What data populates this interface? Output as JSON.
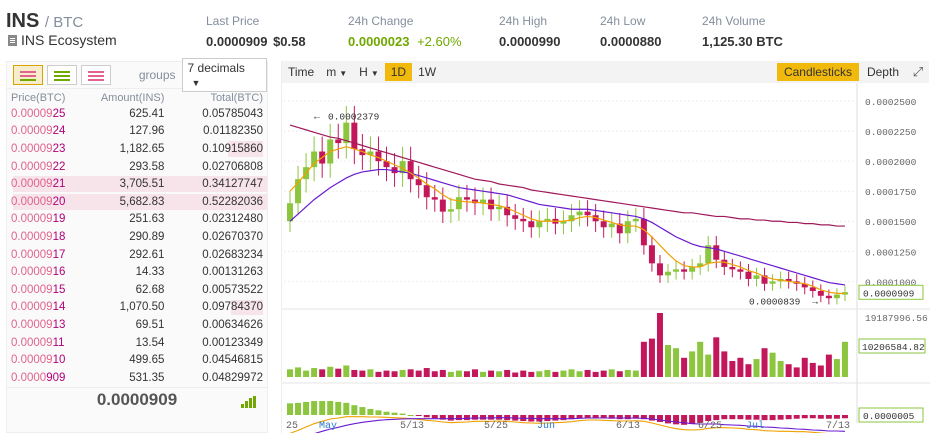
{
  "header": {
    "symbol": "INS",
    "quote": "/ BTC",
    "name": "INS Ecosystem",
    "stats": {
      "last_price_label": "Last Price",
      "last_price": "0.0000909",
      "last_price_usd": "$0.58",
      "change_label": "24h Change",
      "change_value": "0.0000023",
      "change_pct": "+2.60%",
      "high_label": "24h High",
      "high_value": "0.0000990",
      "low_label": "24h Low",
      "low_value": "0.0000880",
      "volume_label": "24h Volume",
      "volume_value": "1,125.30 BTC"
    }
  },
  "orderbook": {
    "groups_label": "groups",
    "groups_value": "7 decimals",
    "columns": [
      "Price(BTC)",
      "Amount(INS)",
      "Total(BTC)"
    ],
    "rows": [
      {
        "prefix": "0.00009",
        "suffix": "25",
        "amount": "625.41",
        "total": "0.05785043",
        "depth": 0
      },
      {
        "prefix": "0.00009",
        "suffix": "24",
        "amount": "127.96",
        "total": "0.01182350",
        "depth": 0
      },
      {
        "prefix": "0.00009",
        "suffix": "23",
        "amount": "1,182.65",
        "total": "0.10915860",
        "depth": 0.38
      },
      {
        "prefix": "0.00009",
        "suffix": "22",
        "amount": "293.58",
        "total": "0.02706808",
        "depth": 0
      },
      {
        "prefix": "0.00009",
        "suffix": "21",
        "amount": "3,705.51",
        "total": "0.34127747",
        "depth": 1
      },
      {
        "prefix": "0.00009",
        "suffix": "20",
        "amount": "5,682.83",
        "total": "0.52282036",
        "depth": 1
      },
      {
        "prefix": "0.00009",
        "suffix": "19",
        "amount": "251.63",
        "total": "0.02312480",
        "depth": 0
      },
      {
        "prefix": "0.00009",
        "suffix": "18",
        "amount": "290.89",
        "total": "0.02670370",
        "depth": 0
      },
      {
        "prefix": "0.00009",
        "suffix": "17",
        "amount": "292.61",
        "total": "0.02683234",
        "depth": 0
      },
      {
        "prefix": "0.00009",
        "suffix": "16",
        "amount": "14.33",
        "total": "0.00131263",
        "depth": 0
      },
      {
        "prefix": "0.00009",
        "suffix": "15",
        "amount": "62.68",
        "total": "0.00573522",
        "depth": 0
      },
      {
        "prefix": "0.00009",
        "suffix": "14",
        "amount": "1,070.50",
        "total": "0.09784370",
        "depth": 0.35
      },
      {
        "prefix": "0.00009",
        "suffix": "13",
        "amount": "69.51",
        "total": "0.00634626",
        "depth": 0
      },
      {
        "prefix": "0.00009",
        "suffix": "11",
        "amount": "13.54",
        "total": "0.00123349",
        "depth": 0
      },
      {
        "prefix": "0.00009",
        "suffix": "10",
        "amount": "499.65",
        "total": "0.04546815",
        "depth": 0
      },
      {
        "prefix": "0.0000",
        "suffix": "909",
        "amount": "531.35",
        "total": "0.04829972",
        "depth": 0
      }
    ],
    "last_price": "0.0000909"
  },
  "toolbar": {
    "time": "Time",
    "minutes": "m",
    "hours": "H",
    "day": "1D",
    "week": "1W",
    "candlesticks": "Candlesticks",
    "depth": "Depth"
  },
  "chart_data": {
    "type": "candlestick",
    "y_ticks": [
      "0.0002500",
      "0.0002250",
      "0.0002000",
      "0.0001750",
      "0.0001500",
      "0.0001250",
      "0.0001000"
    ],
    "price_tag": "0.0000909",
    "annotation_high": "0.0002379",
    "annotation_low": "0.0000839",
    "volume_ticks": [
      "19187996.56",
      "10206584.82"
    ],
    "macd_tag": "0.0000005",
    "x_ticks": [
      "25",
      "May",
      "5/13",
      "5/25",
      "Jun",
      "6/13",
      "6/25",
      "Jul",
      "7/13"
    ],
    "close": [
      0.000165,
      0.000185,
      0.000195,
      0.000208,
      0.000198,
      0.000218,
      0.000215,
      0.000232,
      0.00021,
      0.000205,
      0.000208,
      0.0002,
      0.000195,
      0.00019,
      0.0002,
      0.000185,
      0.00018,
      0.00017,
      0.000168,
      0.000158,
      0.00016,
      0.00017,
      0.000168,
      0.000165,
      0.000168,
      0.00016,
      0.000162,
      0.000155,
      0.000152,
      0.00015,
      0.000145,
      0.00015,
      0.000152,
      0.000148,
      0.00015,
      0.000155,
      0.000158,
      0.000155,
      0.00015,
      0.000145,
      0.000148,
      0.00014,
      0.00015,
      0.000152,
      0.00013,
      0.000115,
      0.000105,
      0.000108,
      0.00011,
      0.000108,
      0.000112,
      0.000115,
      0.00013,
      0.000118,
      0.000112,
      0.00011,
      0.000108,
      0.000102,
      0.000105,
      9.8e-05,
      0.0001,
      0.000102,
      0.0001,
      9.8e-05,
      9.5e-05,
      9.2e-05,
      8.8e-05,
      8.6e-05,
      8.9e-05,
      9.1e-05
    ],
    "ma_fast": [
      0.000175,
      0.000182,
      0.00019,
      0.000198,
      0.000203,
      0.000208,
      0.00021,
      0.000212,
      0.00021,
      0.000208,
      0.000205,
      0.000203,
      0.0002,
      0.000197,
      0.000194,
      0.00019,
      0.000186,
      0.000181,
      0.000177,
      0.000172,
      0.000168,
      0.000167,
      0.000166,
      0.000166,
      0.000165,
      0.000164,
      0.000163,
      0.000161,
      0.000158,
      0.000155,
      0.000152,
      0.00015,
      0.00015,
      0.00015,
      0.00015,
      0.000151,
      0.000153,
      0.000154,
      0.000153,
      0.000151,
      0.000149,
      0.000147,
      0.000146,
      0.000146,
      0.000143,
      0.000137,
      0.00013,
      0.000123,
      0.000117,
      0.000113,
      0.000112,
      0.000112,
      0.000115,
      0.000116,
      0.000116,
      0.000114,
      0.000112,
      0.000109,
      0.000107,
      0.000104,
      0.000102,
      0.000101,
      0.0001,
      9.9e-05,
      9.8e-05,
      9.6e-05,
      9.3e-05,
      9.1e-05,
      9e-05,
      9e-05
    ],
    "ma_mid": [
      0.00015,
      0.000156,
      0.000162,
      0.000168,
      0.000173,
      0.000178,
      0.000182,
      0.000186,
      0.000189,
      0.000191,
      0.000192,
      0.000193,
      0.000193,
      0.000192,
      0.000191,
      0.00019,
      0.000188,
      0.000186,
      0.000184,
      0.000182,
      0.00018,
      0.000178,
      0.000177,
      0.000176,
      0.000175,
      0.000174,
      0.000173,
      0.000172,
      0.00017,
      0.000168,
      0.000166,
      0.000164,
      0.000163,
      0.000162,
      0.000161,
      0.00016,
      0.00016,
      0.00016,
      0.000159,
      0.000158,
      0.000157,
      0.000156,
      0.000155,
      0.000154,
      0.000152,
      0.000149,
      0.000145,
      0.000141,
      0.000137,
      0.000134,
      0.000131,
      0.000129,
      0.000128,
      0.000127,
      0.000125,
      0.000123,
      0.000121,
      0.000119,
      0.000117,
      0.000115,
      0.000113,
      0.000111,
      0.000109,
      0.000107,
      0.000105,
      0.000103,
      0.000101,
      9.9e-05,
      9.8e-05,
      9.7e-05
    ],
    "ma_slow": [
      0.00023,
      0.000228,
      0.000226,
      0.000224,
      0.000222,
      0.00022,
      0.000219,
      0.000217,
      0.000215,
      0.000213,
      0.000211,
      0.000209,
      0.000207,
      0.000205,
      0.000203,
      0.000201,
      0.000199,
      0.000197,
      0.000195,
      0.000193,
      0.000191,
      0.000189,
      0.000187,
      0.000185,
      0.000184,
      0.000183,
      0.000181,
      0.00018,
      0.000179,
      0.000178,
      0.000176,
      0.000175,
      0.000174,
      0.000173,
      0.000172,
      0.000171,
      0.00017,
      0.000169,
      0.000168,
      0.000167,
      0.000166,
      0.000165,
      0.000164,
      0.000163,
      0.000162,
      0.000161,
      0.00016,
      0.000159,
      0.000158,
      0.000157,
      0.000157,
      0.000156,
      0.000155,
      0.000154,
      0.000154,
      0.000153,
      0.000152,
      0.000152,
      0.000151,
      0.000151,
      0.00015,
      0.00015,
      0.000149,
      0.000149,
      0.000148,
      0.000148,
      0.000147,
      0.000147,
      0.000146,
      0.000146
    ],
    "volume": [
      0.12,
      0.15,
      0.1,
      0.14,
      0.12,
      0.16,
      0.13,
      0.18,
      0.11,
      0.1,
      0.12,
      0.08,
      0.1,
      0.09,
      0.11,
      0.12,
      0.1,
      0.14,
      0.09,
      0.11,
      0.08,
      0.1,
      0.09,
      0.12,
      0.08,
      0.1,
      0.09,
      0.11,
      0.07,
      0.1,
      0.08,
      0.09,
      0.11,
      0.08,
      0.1,
      0.12,
      0.09,
      0.11,
      0.08,
      0.1,
      0.12,
      0.09,
      0.11,
      0.1,
      0.55,
      0.6,
      1.0,
      0.5,
      0.45,
      0.3,
      0.4,
      0.55,
      0.35,
      0.62,
      0.4,
      0.25,
      0.3,
      0.2,
      0.28,
      0.45,
      0.38,
      0.25,
      0.2,
      0.15,
      0.3,
      0.22,
      0.18,
      0.35,
      0.28,
      0.55
    ]
  }
}
